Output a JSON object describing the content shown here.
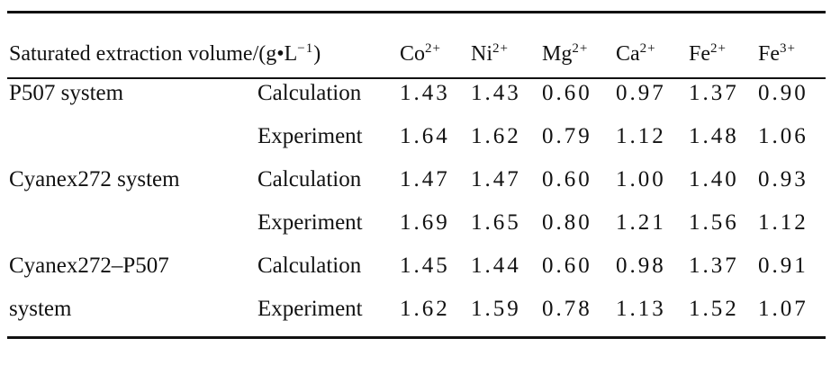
{
  "header": {
    "label": "Saturated extraction volume/(g•L",
    "unit_exp": "−1",
    "label_close": ")",
    "ions": [
      {
        "base": "Co",
        "charge": "2+"
      },
      {
        "base": "Ni",
        "charge": "2+"
      },
      {
        "base": "Mg",
        "charge": "2+"
      },
      {
        "base": "Ca",
        "charge": "2+"
      },
      {
        "base": "Fe",
        "charge": "2+"
      },
      {
        "base": "Fe",
        "charge": "3+"
      }
    ]
  },
  "rows": [
    {
      "system": "P507 system",
      "method": "Calculation",
      "values": [
        "1.43",
        "1.43",
        "0.60",
        "0.97",
        "1.37",
        "0.90"
      ]
    },
    {
      "system": "",
      "method": "Experiment",
      "values": [
        "1.64",
        "1.62",
        "0.79",
        "1.12",
        "1.48",
        "1.06"
      ]
    },
    {
      "system": "Cyanex272 system",
      "method": "Calculation",
      "values": [
        "1.47",
        "1.47",
        "0.60",
        "1.00",
        "1.40",
        "0.93"
      ]
    },
    {
      "system": "",
      "method": "Experiment",
      "values": [
        "1.69",
        "1.65",
        "0.80",
        "1.21",
        "1.56",
        "1.12"
      ]
    },
    {
      "system": "Cyanex272–P507",
      "method": "Calculation",
      "values": [
        "1.45",
        "1.44",
        "0.60",
        "0.98",
        "1.37",
        "0.91"
      ]
    },
    {
      "system": "system",
      "method": "Experiment",
      "values": [
        "1.62",
        "1.59",
        "0.78",
        "1.13",
        "1.52",
        "1.07"
      ]
    }
  ]
}
